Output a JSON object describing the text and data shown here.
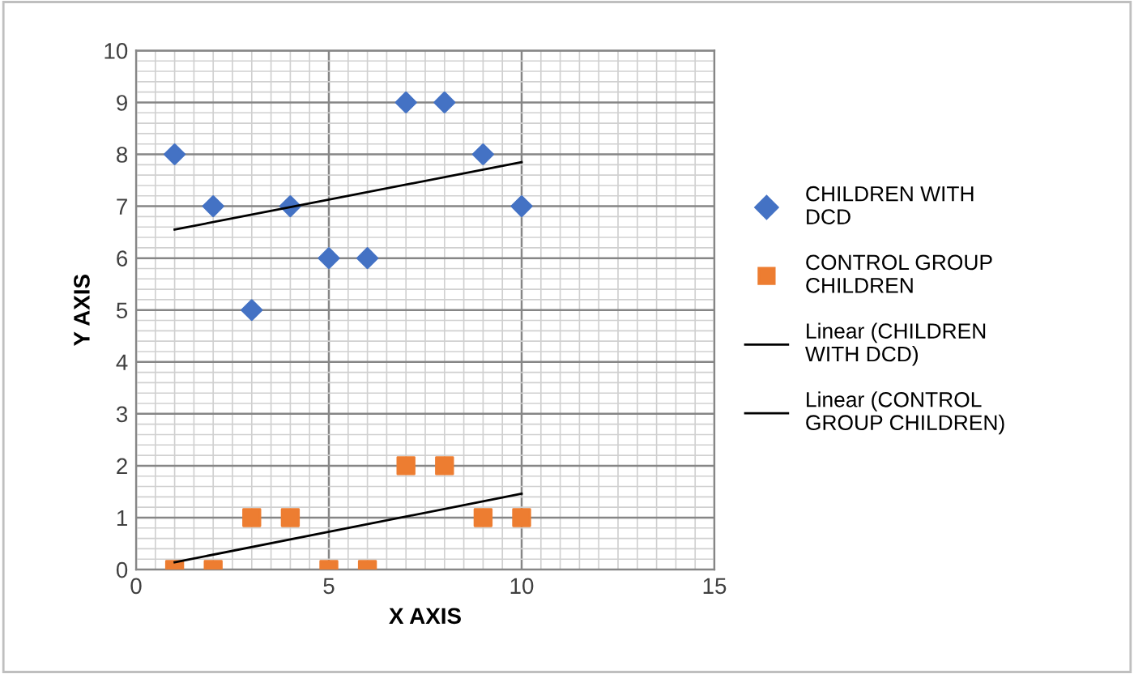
{
  "chart_data": {
    "type": "scatter",
    "xlabel": "X AXIS",
    "ylabel": "Y AXIS",
    "xlim": [
      0,
      15
    ],
    "xticks": [
      0,
      5,
      10,
      15
    ],
    "ylim": [
      0,
      10
    ],
    "yticks": [
      0,
      1,
      2,
      3,
      4,
      5,
      6,
      7,
      8,
      9,
      10
    ],
    "grid": true,
    "legend": "right",
    "series": [
      {
        "name": "CHILDREN WITH DCD",
        "marker": "diamond",
        "color": "#4472c4",
        "x": [
          1,
          2,
          3,
          4,
          5,
          6,
          7,
          8,
          9,
          10
        ],
        "values": [
          8,
          7,
          5,
          7,
          6,
          6,
          9,
          9,
          8,
          7
        ]
      },
      {
        "name": "CONTROL GROUP CHILDREN",
        "marker": "square",
        "color": "#ed7d31",
        "x": [
          1,
          2,
          3,
          4,
          5,
          6,
          7,
          8,
          9,
          10
        ],
        "values": [
          0,
          0,
          1,
          1,
          0,
          0,
          2,
          2,
          1,
          1
        ]
      },
      {
        "name": "Linear (CHILDREN WITH DCD)",
        "type": "line",
        "marker": "none",
        "color": "#000000",
        "x": [
          1,
          10
        ],
        "values": [
          6.55,
          7.85
        ]
      },
      {
        "name": "Linear (CONTROL GROUP CHILDREN)",
        "type": "line",
        "marker": "none",
        "color": "#000000",
        "x": [
          1,
          10
        ],
        "values": [
          0.14,
          1.46
        ]
      }
    ]
  }
}
